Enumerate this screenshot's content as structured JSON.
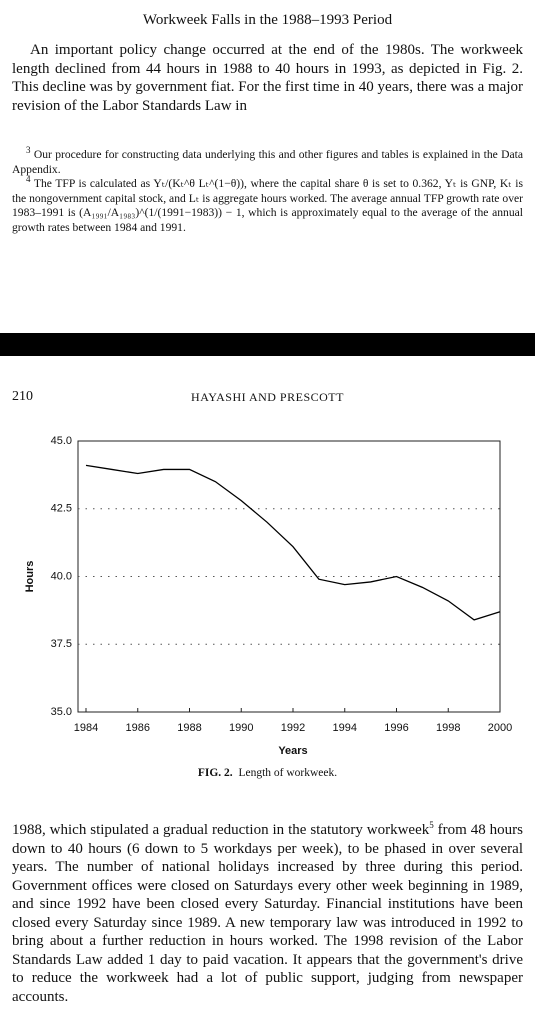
{
  "top": {
    "heading": "Workweek Falls in the 1988–1993 Period",
    "paragraph": "An important policy change occurred at the end of the 1980s. The workweek length declined from 44 hours in 1988 to 40 hours in 1993, as depicted in Fig. 2. This decline was by government fiat. For the first time in 40 years, there was a major revision of the Labor Standards Law in",
    "footnotes": [
      {
        "marker": "3",
        "text": "Our procedure for constructing data underlying this and other figures and tables is explained in the Data Appendix."
      },
      {
        "marker": "4",
        "text": "The TFP is calculated as Yₜ/(Kₜ^θ Lₜ^(1−θ)), where the capital share θ is set to 0.362, Yₜ is GNP, Kₜ is the nongovernment capital stock, and Lₜ is aggregate hours worked. The average annual TFP growth rate over 1983–1991 is (A₁₉₉₁/A₁₉₈₃)^(1/(1991−1983)) − 1, which is approximately equal to the average of the annual growth rates between 1984 and 1991."
      }
    ]
  },
  "page_header": {
    "number": "210",
    "authors": "HAYASHI AND PRESCOTT"
  },
  "chart_data": {
    "type": "line",
    "x": [
      1984,
      1985,
      1986,
      1987,
      1988,
      1989,
      1990,
      1991,
      1992,
      1993,
      1994,
      1995,
      1996,
      1997,
      1998,
      1999,
      2000
    ],
    "values": [
      44.1,
      43.95,
      43.8,
      43.95,
      43.95,
      43.5,
      42.8,
      42.0,
      41.1,
      39.9,
      39.7,
      39.8,
      40.0,
      39.6,
      39.1,
      38.4,
      38.7
    ],
    "color": "#000000",
    "xlim": [
      1984,
      2000
    ],
    "xticks": [
      1984,
      1986,
      1988,
      1990,
      1992,
      1994,
      1996,
      1998,
      2000
    ],
    "ylim": [
      35,
      45
    ],
    "yticks": [
      {
        "value": 35,
        "label": "35.0"
      },
      {
        "value": 37.5,
        "label": "37.5"
      },
      {
        "value": 40,
        "label": "40.0"
      },
      {
        "value": 42.5,
        "label": "42.5"
      },
      {
        "value": 45,
        "label": "45.0"
      }
    ],
    "grid": true,
    "y_label": "Hours",
    "x_label": "Years",
    "caption_label": "FIG. 2.",
    "caption": "Length of workweek."
  },
  "body": {
    "before_note": "1988, which stipulated a gradual reduction in the statutory workweek",
    "note": "5",
    "after_note": "from 48 hours down to 40 hours (6 down to 5 workdays per week), to be phased in over several years. The number of national holidays increased by three during this period. Government offices were closed on Saturdays every other week beginning in 1989, and since 1992 have been closed every Saturday. Financial institutions have been closed every Saturday since 1989. A new temporary law was introduced in 1992 to bring about a further reduction in hours worked. The 1998 revision of the Labor Standards Law added 1 day to paid vacation. It appears that the government's drive to reduce the workweek had a lot of public support, judging from newspaper accounts."
  }
}
